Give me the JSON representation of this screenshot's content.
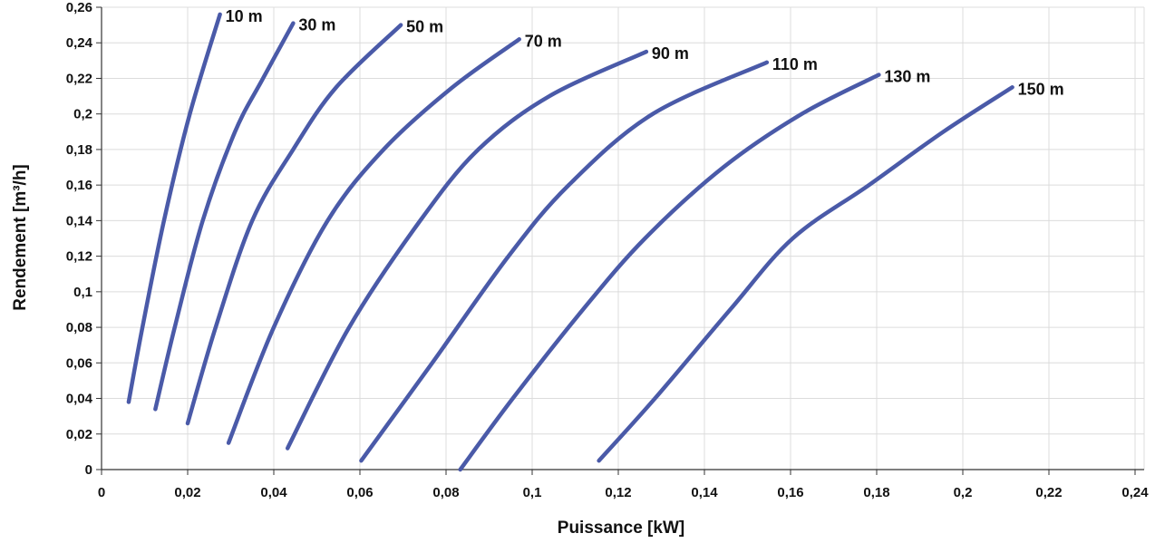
{
  "chart_data": {
    "type": "line",
    "xlabel": "Puissance  [kW]",
    "ylabel": "Rendement [m³/h]",
    "xlim": [
      0,
      0.24
    ],
    "ylim": [
      0,
      0.26
    ],
    "grid": true,
    "x_ticks": [
      0,
      0.02,
      0.04,
      0.06,
      0.08,
      0.1,
      0.12,
      0.14,
      0.16,
      0.18,
      0.2,
      0.22,
      0.24
    ],
    "x_tick_labels": [
      "0",
      "0,02",
      "0,04",
      "0,06",
      "0,08",
      "0,1",
      "0,12",
      "0,14",
      "0,16",
      "0,18",
      "0,2",
      "0,22",
      "0,24"
    ],
    "y_ticks": [
      0,
      0.02,
      0.04,
      0.06,
      0.08,
      0.1,
      0.12,
      0.14,
      0.16,
      0.18,
      0.2,
      0.22,
      0.24,
      0.26
    ],
    "y_tick_labels": [
      "0",
      "0,02",
      "0,04",
      "0,06",
      "0,08",
      "0,1",
      "0,12",
      "0,14",
      "0,16",
      "0,18",
      "0,2",
      "0,22",
      "0,24",
      "0,26"
    ],
    "series": [
      {
        "name": "10 m",
        "x": [
          0.0063,
          0.0095,
          0.0145,
          0.0205,
          0.0275
        ],
        "y": [
          0.038,
          0.08,
          0.14,
          0.2,
          0.256
        ]
      },
      {
        "name": "30 m",
        "x": [
          0.0125,
          0.017,
          0.0235,
          0.031,
          0.0375,
          0.0445
        ],
        "y": [
          0.034,
          0.08,
          0.14,
          0.19,
          0.22,
          0.251
        ]
      },
      {
        "name": "50 m",
        "x": [
          0.02,
          0.0265,
          0.035,
          0.0445,
          0.0545,
          0.0695
        ],
        "y": [
          0.026,
          0.08,
          0.14,
          0.18,
          0.215,
          0.25
        ]
      },
      {
        "name": "70 m",
        "x": [
          0.0295,
          0.04,
          0.0525,
          0.0655,
          0.0815,
          0.097
        ],
        "y": [
          0.015,
          0.08,
          0.14,
          0.18,
          0.215,
          0.242
        ]
      },
      {
        "name": "90 m",
        "x": [
          0.0432,
          0.0575,
          0.074,
          0.0875,
          0.104,
          0.1265
        ],
        "y": [
          0.012,
          0.08,
          0.14,
          0.18,
          0.21,
          0.235
        ]
      },
      {
        "name": "110 m",
        "x": [
          0.0603,
          0.0768,
          0.0945,
          0.1085,
          0.128,
          0.1545
        ],
        "y": [
          0.005,
          0.06,
          0.12,
          0.16,
          0.2,
          0.229
        ]
      },
      {
        "name": "130 m",
        "x": [
          0.0833,
          0.0955,
          0.1118,
          0.1262,
          0.1444,
          0.1626,
          0.1805
        ],
        "y": [
          0.0,
          0.04,
          0.09,
          0.13,
          0.17,
          0.2,
          0.222
        ]
      },
      {
        "name": "150 m",
        "x": [
          0.1155,
          0.1285,
          0.146,
          0.1605,
          0.1782,
          0.1955,
          0.2115
        ],
        "y": [
          0.005,
          0.04,
          0.09,
          0.13,
          0.16,
          0.19,
          0.215
        ]
      }
    ],
    "line_color": "#4a5aa8",
    "grid_color": "#dcdcdc"
  }
}
